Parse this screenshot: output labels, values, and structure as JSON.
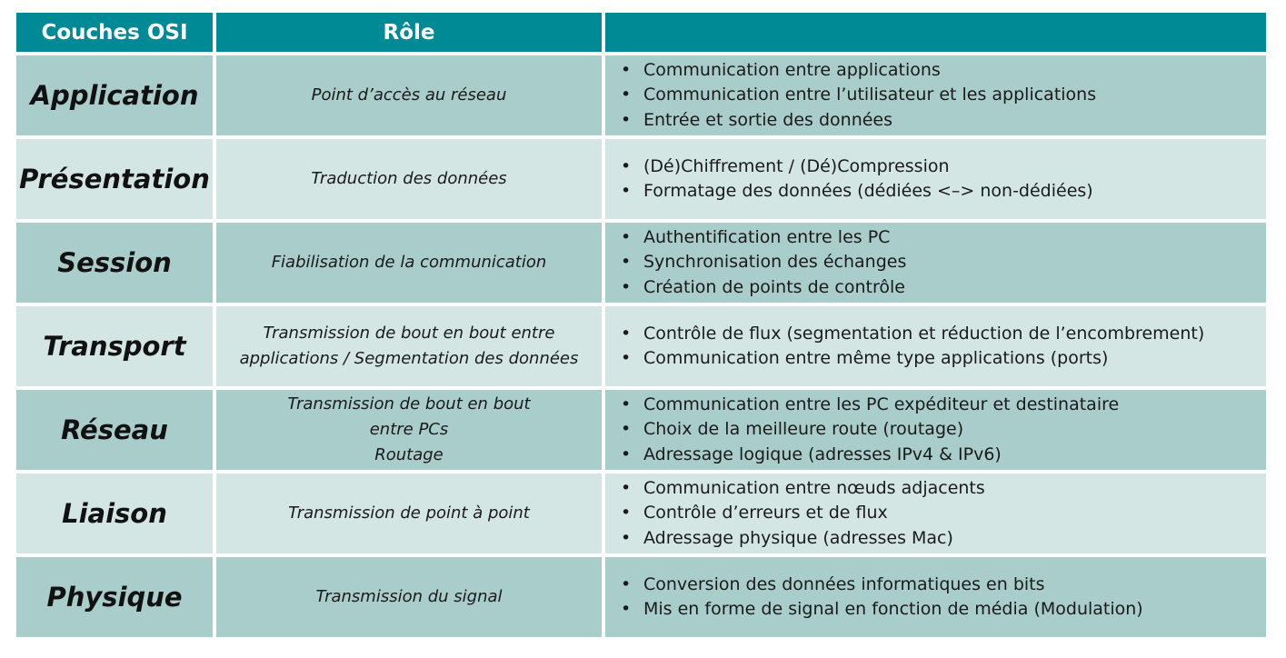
{
  "table": {
    "headers": [
      "Couches OSI",
      "Rôle",
      ""
    ],
    "rows": [
      {
        "layer": "Application",
        "role": [
          "Point d’accès au réseau"
        ],
        "details": [
          "Communication entre applications",
          "Communication entre l’utilisateur et les applications",
          "Entrée et sortie des données"
        ]
      },
      {
        "layer": "Présentation",
        "role": [
          "Traduction des données"
        ],
        "details": [
          "(Dé)Chiffrement / (Dé)Compression",
          "Formatage des données (dédiées <–> non-dédiées)"
        ]
      },
      {
        "layer": "Session",
        "role": [
          "Fiabilisation de la communication"
        ],
        "details": [
          "Authentification entre les PC",
          "Synchronisation des échanges",
          "Création de points de contrôle"
        ]
      },
      {
        "layer": "Transport",
        "role": [
          "Transmission de bout en bout entre",
          "applications / Segmentation des données"
        ],
        "details": [
          "Contrôle de flux (segmentation et réduction de l’encombrement)",
          "Communication entre même type applications (ports)"
        ]
      },
      {
        "layer": "Réseau",
        "role": [
          "Transmission de bout en bout",
          "entre PCs",
          "Routage"
        ],
        "details": [
          "Communication entre les PC expéditeur et destinataire",
          "Choix de la meilleure route (routage)",
          "Adressage logique (adresses IPv4 & IPv6)"
        ]
      },
      {
        "layer": "Liaison",
        "role": [
          "Transmission de point à point"
        ],
        "details": [
          "Communication entre nœuds adjacents",
          "Contrôle d’erreurs et de flux",
          "Adressage physique (adresses Mac)"
        ]
      },
      {
        "layer": "Physique",
        "role": [
          "Transmission du signal"
        ],
        "details": [
          "Conversion des données informatiques en bits",
          "Mis en forme de signal en fonction de média (Modulation)"
        ]
      }
    ]
  },
  "bullet_char": "•",
  "colors": {
    "header_bg": "#008a96",
    "row_dark": "#a9cdca",
    "row_light": "#d3e6e4",
    "header_text": "#ffffff"
  }
}
